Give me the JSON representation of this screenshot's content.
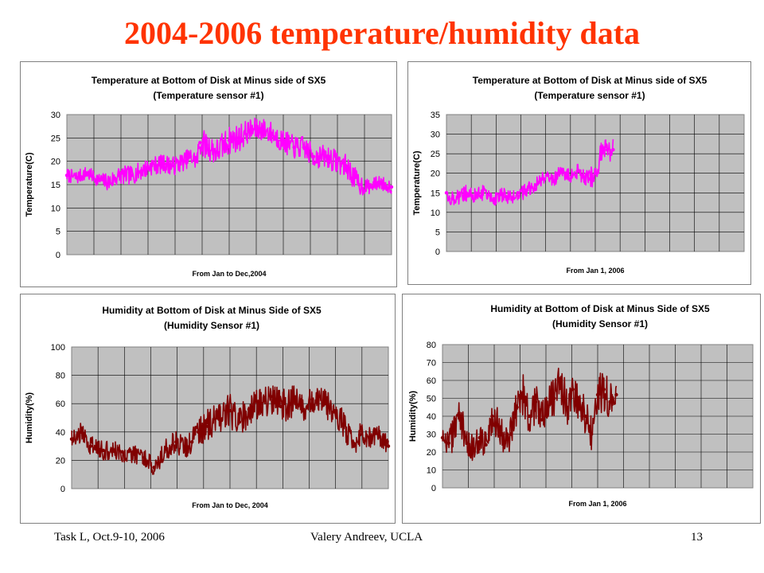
{
  "slide": {
    "title": "2004-2006 temperature/humidity data",
    "footer_left": "Task L, Oct.9-10, 2006",
    "footer_center": "Valery Andreev, UCLA",
    "footer_right": "13"
  },
  "chart_data": [
    {
      "type": "line",
      "title_lines": [
        "Temperature at Bottom of Disk at Minus side of SX5",
        "(Temperature sensor #1)"
      ],
      "xlabel": "From Jan to Dec,2004",
      "ylabel": "Temperature(C)",
      "ylim": [
        0,
        30
      ],
      "yticks": [
        0,
        5,
        10,
        15,
        20,
        25,
        30
      ],
      "grid": true,
      "color": "#ff00ff",
      "series": [
        {
          "x": [
            0,
            0.03,
            0.06,
            0.1,
            0.13,
            0.16,
            0.2,
            0.23,
            0.26,
            0.3,
            0.33,
            0.36,
            0.38,
            0.4,
            0.41,
            0.43,
            0.46,
            0.5,
            0.53,
            0.56,
            0.6,
            0.63,
            0.66,
            0.7,
            0.73,
            0.76,
            0.8,
            0.83,
            0.86,
            0.9,
            0.93,
            0.96,
            1
          ],
          "y": [
            17,
            16.5,
            17.5,
            16,
            15.5,
            17,
            17,
            18,
            19,
            19.5,
            19,
            20,
            21,
            20,
            24,
            23.5,
            22,
            24.5,
            25,
            26.5,
            27,
            26,
            24.5,
            23,
            23,
            21,
            21,
            20,
            19,
            15,
            14.5,
            15.5,
            14.5
          ],
          "band": [
            1.5,
            1.5,
            1.5,
            1.5,
            2,
            2,
            2,
            2,
            2,
            2,
            2,
            2,
            2,
            2,
            3,
            3,
            3,
            3,
            3,
            2.5,
            2.5,
            2.5,
            2.5,
            2.5,
            2.5,
            2.5,
            2.5,
            2.5,
            2.5,
            2.5,
            1.5,
            1.5,
            1.5
          ]
        }
      ]
    },
    {
      "type": "line",
      "title_lines": [
        "Temperature at Bottom of Disk at Minus side of SX5",
        "(Temperature sensor #1)"
      ],
      "xlabel": "From Jan 1, 2006",
      "ylabel": "Temperature(C)",
      "ylim": [
        0,
        35
      ],
      "yticks": [
        0,
        5,
        10,
        15,
        20,
        25,
        30,
        35
      ],
      "grid": true,
      "color": "#ff00ff",
      "series": [
        {
          "x": [
            0,
            0.02,
            0.04,
            0.06,
            0.08,
            0.1,
            0.12,
            0.14,
            0.16,
            0.18,
            0.2,
            0.22,
            0.24,
            0.26,
            0.28,
            0.3,
            0.32,
            0.34,
            0.36,
            0.38,
            0.4,
            0.42,
            0.44,
            0.46,
            0.48,
            0.5,
            0.52,
            0.54,
            0.56
          ],
          "y": [
            15,
            13.5,
            14,
            16,
            14.5,
            14,
            15,
            14.5,
            13.5,
            14.5,
            14,
            13.5,
            15,
            15,
            16.5,
            17,
            18.5,
            19.5,
            18,
            20,
            20,
            19,
            20.5,
            19,
            18.5,
            20,
            25,
            26,
            26
          ],
          "band": [
            2,
            2.5,
            2,
            3,
            2,
            2,
            2,
            2,
            2,
            2,
            2,
            2,
            2,
            2,
            2,
            2,
            2,
            2,
            2,
            2,
            2,
            2,
            2,
            2,
            2.5,
            3,
            3,
            3,
            3
          ]
        }
      ]
    },
    {
      "type": "line",
      "title_lines": [
        "Humidity at Bottom of Disk at Minus Side of SX5",
        "(Humidity Sensor #1)"
      ],
      "xlabel": "From Jan to Dec, 2004",
      "ylabel": "Humidity(%)",
      "ylim": [
        0,
        100
      ],
      "yticks": [
        0,
        20,
        40,
        60,
        80,
        100
      ],
      "grid": true,
      "color": "#800000",
      "series": [
        {
          "x": [
            0,
            0.03,
            0.06,
            0.1,
            0.13,
            0.16,
            0.2,
            0.23,
            0.26,
            0.3,
            0.33,
            0.36,
            0.38,
            0.4,
            0.43,
            0.46,
            0.5,
            0.53,
            0.56,
            0.6,
            0.63,
            0.66,
            0.7,
            0.73,
            0.76,
            0.8,
            0.83,
            0.86,
            0.89,
            0.91,
            0.94,
            0.97,
            1
          ],
          "y": [
            35,
            40,
            30,
            27,
            28,
            26,
            24,
            22,
            15,
            28,
            33,
            28,
            33,
            40,
            44,
            50,
            55,
            47,
            56,
            60,
            65,
            58,
            62,
            55,
            63,
            60,
            55,
            45,
            30,
            38,
            36,
            38,
            30
          ],
          "band": [
            6,
            8,
            8,
            7,
            7,
            7,
            7,
            7,
            6,
            8,
            8,
            8,
            10,
            10,
            12,
            12,
            12,
            12,
            12,
            12,
            12,
            12,
            12,
            12,
            10,
            10,
            10,
            10,
            8,
            8,
            8,
            7,
            6
          ]
        }
      ]
    },
    {
      "type": "line",
      "title_lines": [
        "Humidity at Bottom of Disk at Minus Side of SX5",
        "(Humidity Sensor #1)"
      ],
      "xlabel": "From Jan 1, 2006",
      "ylabel": "Humidity(%)",
      "ylim": [
        0,
        80
      ],
      "yticks": [
        0,
        10,
        20,
        30,
        40,
        50,
        60,
        70,
        80
      ],
      "grid": true,
      "color": "#800000",
      "series": [
        {
          "x": [
            0,
            0.02,
            0.04,
            0.06,
            0.08,
            0.1,
            0.12,
            0.14,
            0.16,
            0.18,
            0.2,
            0.22,
            0.24,
            0.26,
            0.28,
            0.3,
            0.32,
            0.34,
            0.36,
            0.38,
            0.4,
            0.42,
            0.44,
            0.46,
            0.48,
            0.5,
            0.52,
            0.54,
            0.56
          ],
          "y": [
            28,
            25,
            32,
            40,
            25,
            22,
            28,
            24,
            40,
            35,
            25,
            30,
            45,
            52,
            40,
            48,
            38,
            45,
            50,
            60,
            45,
            55,
            50,
            40,
            30,
            52,
            55,
            48,
            52
          ],
          "band": [
            8,
            8,
            10,
            12,
            8,
            8,
            8,
            8,
            10,
            10,
            8,
            10,
            10,
            12,
            10,
            12,
            10,
            12,
            12,
            12,
            12,
            12,
            12,
            10,
            10,
            12,
            12,
            10,
            10
          ]
        }
      ]
    }
  ]
}
